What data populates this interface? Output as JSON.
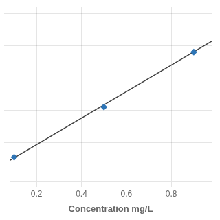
{
  "chart_data": {
    "type": "scatter",
    "xlabel": "Concentration mg/L",
    "series": [
      {
        "type": "scatter",
        "color": "#2E75B6",
        "marker": "diamond",
        "x": [
          0.1,
          0.5,
          0.9
        ],
        "values": [
          0.055,
          0.21,
          0.38
        ]
      },
      {
        "type": "line",
        "color": "#404040",
        "line_style": "solid",
        "x": [
          0.08,
          0.98
        ],
        "values": [
          0.0448,
          0.4138
        ]
      }
    ],
    "xlim": [
      0.08,
      0.98
    ],
    "ylim": [
      -0.02,
      0.52
    ],
    "xticks": [
      0.2,
      0.4,
      0.6,
      0.8
    ],
    "yticks": [
      0,
      0.1,
      0.2,
      0.3,
      0.4,
      0.5
    ],
    "grid": true,
    "tick_labels": "x"
  }
}
